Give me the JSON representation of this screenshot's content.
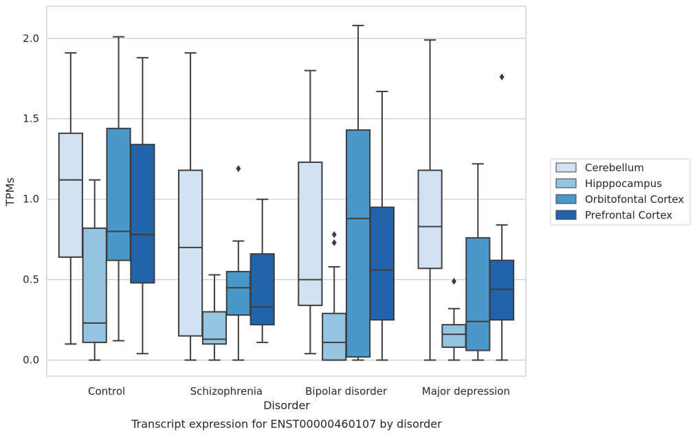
{
  "caption": "Transcript expression for ENST00000460107 by disorder",
  "chart_data": {
    "type": "boxplot",
    "xlabel": "Disorder",
    "ylabel": "TPMs",
    "ylim": [
      -0.1,
      2.2
    ],
    "yticks": [
      0.0,
      0.5,
      1.0,
      1.5,
      2.0
    ],
    "ytick_labels": [
      "0.0",
      "0.5",
      "1.0",
      "1.5",
      "2.0"
    ],
    "grid": "horizontal",
    "legend_position": "right",
    "categories": [
      "Control",
      "Schizophrenia",
      "Bipolar disorder",
      "Major depression"
    ],
    "series": [
      {
        "name": "Cerebellum",
        "color": "#d0e1f2",
        "boxes": [
          {
            "whislo": 0.1,
            "q1": 0.64,
            "med": 1.12,
            "q3": 1.41,
            "whishi": 1.91,
            "fliers": []
          },
          {
            "whislo": 0.0,
            "q1": 0.15,
            "med": 0.7,
            "q3": 1.18,
            "whishi": 1.91,
            "fliers": []
          },
          {
            "whislo": 0.04,
            "q1": 0.34,
            "med": 0.5,
            "q3": 1.23,
            "whishi": 1.8,
            "fliers": []
          },
          {
            "whislo": 0.0,
            "q1": 0.57,
            "med": 0.83,
            "q3": 1.18,
            "whishi": 1.99,
            "fliers": []
          }
        ]
      },
      {
        "name": "Hipppocampus",
        "color": "#94c4df",
        "boxes": [
          {
            "whislo": 0.0,
            "q1": 0.11,
            "med": 0.23,
            "q3": 0.82,
            "whishi": 1.12,
            "fliers": []
          },
          {
            "whislo": 0.0,
            "q1": 0.1,
            "med": 0.13,
            "q3": 0.3,
            "whishi": 0.53,
            "fliers": []
          },
          {
            "whislo": 0.0,
            "q1": 0.0,
            "med": 0.11,
            "q3": 0.29,
            "whishi": 0.58,
            "fliers": [
              0.73,
              0.78
            ]
          },
          {
            "whislo": 0.0,
            "q1": 0.08,
            "med": 0.16,
            "q3": 0.22,
            "whishi": 0.32,
            "fliers": [
              0.49
            ]
          }
        ]
      },
      {
        "name": "Orbitofontal Cortex",
        "color": "#4a98c9",
        "boxes": [
          {
            "whislo": 0.12,
            "q1": 0.62,
            "med": 0.8,
            "q3": 1.44,
            "whishi": 2.01,
            "fliers": []
          },
          {
            "whislo": 0.0,
            "q1": 0.28,
            "med": 0.45,
            "q3": 0.55,
            "whishi": 0.74,
            "fliers": [
              1.19
            ]
          },
          {
            "whislo": 0.0,
            "q1": 0.02,
            "med": 0.88,
            "q3": 1.43,
            "whishi": 2.08,
            "fliers": []
          },
          {
            "whislo": 0.0,
            "q1": 0.06,
            "med": 0.24,
            "q3": 0.76,
            "whishi": 1.22,
            "fliers": []
          }
        ]
      },
      {
        "name": "Prefrontal Cortex",
        "color": "#2164ab",
        "boxes": [
          {
            "whislo": 0.04,
            "q1": 0.48,
            "med": 0.78,
            "q3": 1.34,
            "whishi": 1.88,
            "fliers": []
          },
          {
            "whislo": 0.11,
            "q1": 0.22,
            "med": 0.33,
            "q3": 0.66,
            "whishi": 1.0,
            "fliers": []
          },
          {
            "whislo": 0.0,
            "q1": 0.25,
            "med": 0.56,
            "q3": 0.95,
            "whishi": 1.67,
            "fliers": []
          },
          {
            "whislo": 0.0,
            "q1": 0.25,
            "med": 0.44,
            "q3": 0.62,
            "whishi": 0.84,
            "fliers": [
              1.76
            ]
          }
        ]
      }
    ]
  }
}
